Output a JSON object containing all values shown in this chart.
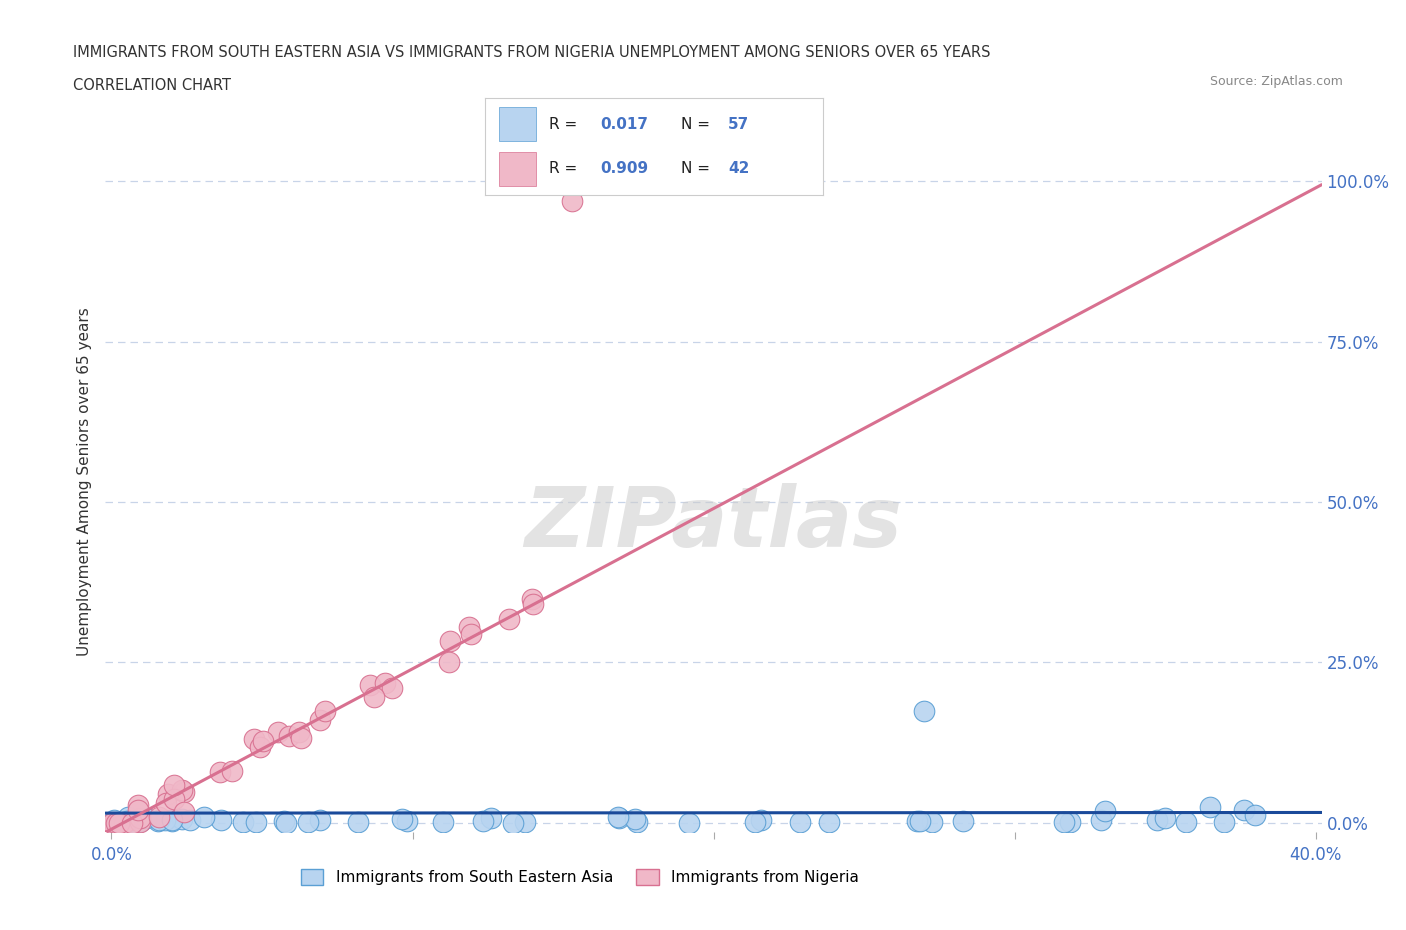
{
  "title_line1": "IMMIGRANTS FROM SOUTH EASTERN ASIA VS IMMIGRANTS FROM NIGERIA UNEMPLOYMENT AMONG SENIORS OVER 65 YEARS",
  "title_line2": "CORRELATION CHART",
  "source_text": "Source: ZipAtlas.com",
  "ylabel": "Unemployment Among Seniors over 65 years",
  "xlim": [
    -0.002,
    0.402
  ],
  "ylim": [
    -0.015,
    1.08
  ],
  "xtick_positions": [
    0.0,
    0.1,
    0.2,
    0.3,
    0.4
  ],
  "xticklabels": [
    "0.0%",
    "",
    "",
    "",
    "40.0%"
  ],
  "ytick_positions": [
    0.0,
    0.25,
    0.5,
    0.75,
    1.0
  ],
  "ytick_labels_right": [
    "0.0%",
    "25.0%",
    "50.0%",
    "75.0%",
    "100.0%"
  ],
  "watermark": "ZIPatlas",
  "legend_r1_val": "0.017",
  "legend_n1_val": "57",
  "legend_r2_val": "0.909",
  "legend_n2_val": "42",
  "series1_color": "#b8d4f0",
  "series1_edge": "#5a9fd4",
  "series1_line_color": "#1a4a9a",
  "series2_color": "#f0b8c8",
  "series2_edge": "#d87090",
  "series2_line_color": "#d87090",
  "series1_label": "Immigrants from South Eastern Asia",
  "series2_label": "Immigrants from Nigeria",
  "grid_color": "#c8d4e8",
  "background_color": "#ffffff",
  "text_color_blue": "#4472c4",
  "text_color_dark": "#333333",
  "text_color_gray": "#888888"
}
